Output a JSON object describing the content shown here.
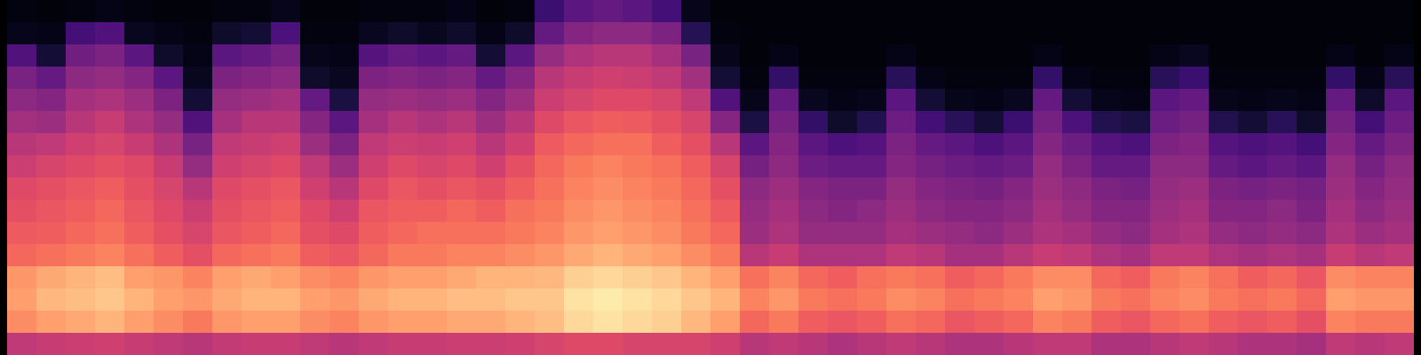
{
  "chart_data": {
    "type": "heatmap",
    "color": "magma",
    "tick_labels": false,
    "zlim": [
      0,
      100
    ],
    "cells": [
      [
        3,
        5,
        25,
        35,
        40,
        45,
        50,
        55,
        60,
        62,
        65,
        68,
        78,
        80,
        76,
        52
      ],
      [
        2,
        4,
        10,
        30,
        38,
        44,
        52,
        58,
        62,
        64,
        66,
        70,
        82,
        85,
        80,
        54
      ],
      [
        3,
        22,
        33,
        40,
        46,
        50,
        56,
        60,
        64,
        66,
        68,
        72,
        84,
        86,
        82,
        55
      ],
      [
        4,
        25,
        36,
        42,
        48,
        54,
        58,
        62,
        66,
        68,
        70,
        74,
        86,
        88,
        84,
        56
      ],
      [
        3,
        6,
        28,
        38,
        44,
        48,
        54,
        60,
        62,
        64,
        66,
        70,
        80,
        84,
        80,
        54
      ],
      [
        2,
        4,
        8,
        28,
        36,
        42,
        48,
        54,
        58,
        60,
        62,
        66,
        78,
        80,
        76,
        52
      ],
      [
        2,
        3,
        4,
        6,
        10,
        25,
        35,
        42,
        50,
        55,
        58,
        62,
        74,
        78,
        72,
        50
      ],
      [
        3,
        8,
        28,
        36,
        42,
        46,
        52,
        56,
        60,
        62,
        64,
        68,
        80,
        82,
        78,
        53
      ],
      [
        3,
        10,
        30,
        38,
        44,
        50,
        54,
        58,
        62,
        64,
        66,
        70,
        82,
        84,
        80,
        54
      ],
      [
        5,
        24,
        34,
        40,
        46,
        50,
        56,
        60,
        64,
        66,
        68,
        72,
        80,
        84,
        80,
        54
      ],
      [
        2,
        3,
        5,
        8,
        30,
        38,
        44,
        52,
        56,
        60,
        62,
        66,
        76,
        80,
        76,
        52
      ],
      [
        2,
        3,
        4,
        6,
        12,
        28,
        36,
        44,
        50,
        56,
        60,
        64,
        74,
        78,
        74,
        50
      ],
      [
        3,
        6,
        26,
        36,
        42,
        46,
        52,
        56,
        60,
        64,
        66,
        68,
        78,
        82,
        78,
        52
      ],
      [
        3,
        8,
        30,
        38,
        44,
        50,
        55,
        60,
        64,
        66,
        68,
        72,
        80,
        84,
        80,
        54
      ],
      [
        3,
        6,
        28,
        36,
        42,
        48,
        54,
        58,
        62,
        66,
        70,
        72,
        80,
        84,
        80,
        54
      ],
      [
        4,
        8,
        30,
        38,
        44,
        50,
        56,
        60,
        64,
        68,
        70,
        74,
        82,
        86,
        82,
        55
      ],
      [
        2,
        4,
        10,
        30,
        38,
        44,
        50,
        56,
        62,
        66,
        70,
        74,
        84,
        86,
        82,
        55
      ],
      [
        3,
        8,
        28,
        38,
        44,
        50,
        56,
        62,
        66,
        70,
        72,
        76,
        84,
        88,
        84,
        56
      ],
      [
        20,
        30,
        42,
        50,
        55,
        60,
        65,
        68,
        70,
        72,
        74,
        78,
        85,
        88,
        86,
        58
      ],
      [
        28,
        38,
        48,
        54,
        58,
        64,
        68,
        72,
        74,
        76,
        78,
        82,
        90,
        94,
        92,
        60
      ],
      [
        30,
        40,
        50,
        56,
        60,
        66,
        70,
        74,
        76,
        78,
        80,
        84,
        92,
        96,
        94,
        60
      ],
      [
        28,
        40,
        50,
        55,
        60,
        65,
        70,
        72,
        74,
        76,
        78,
        82,
        90,
        94,
        92,
        58
      ],
      [
        22,
        36,
        46,
        52,
        58,
        62,
        66,
        70,
        72,
        74,
        76,
        80,
        88,
        92,
        90,
        58
      ],
      [
        5,
        15,
        35,
        45,
        52,
        58,
        62,
        66,
        68,
        70,
        72,
        76,
        84,
        88,
        85,
        58
      ],
      [
        2,
        3,
        5,
        10,
        25,
        38,
        50,
        58,
        62,
        65,
        68,
        72,
        80,
        84,
        80,
        56
      ],
      [
        2,
        2,
        2,
        3,
        5,
        12,
        28,
        34,
        40,
        42,
        44,
        50,
        70,
        74,
        68,
        50
      ],
      [
        2,
        2,
        4,
        18,
        30,
        34,
        38,
        40,
        44,
        46,
        48,
        54,
        74,
        78,
        72,
        52
      ],
      [
        2,
        2,
        2,
        3,
        6,
        18,
        28,
        32,
        38,
        40,
        42,
        48,
        68,
        72,
        66,
        50
      ],
      [
        2,
        2,
        2,
        3,
        4,
        8,
        24,
        30,
        36,
        38,
        42,
        48,
        66,
        70,
        64,
        48
      ],
      [
        2,
        2,
        2,
        3,
        5,
        14,
        26,
        30,
        36,
        40,
        42,
        48,
        70,
        72,
        66,
        50
      ],
      [
        2,
        2,
        4,
        16,
        28,
        32,
        36,
        38,
        42,
        44,
        46,
        52,
        72,
        76,
        70,
        52
      ],
      [
        2,
        2,
        2,
        4,
        10,
        22,
        30,
        34,
        38,
        40,
        44,
        50,
        70,
        74,
        68,
        50
      ],
      [
        2,
        2,
        2,
        3,
        5,
        16,
        28,
        32,
        36,
        38,
        42,
        46,
        66,
        70,
        64,
        48
      ],
      [
        2,
        2,
        2,
        3,
        4,
        10,
        24,
        30,
        34,
        38,
        40,
        46,
        68,
        72,
        66,
        48
      ],
      [
        2,
        2,
        2,
        3,
        6,
        20,
        28,
        32,
        38,
        40,
        44,
        50,
        72,
        74,
        68,
        50
      ],
      [
        2,
        2,
        4,
        18,
        30,
        34,
        38,
        42,
        44,
        46,
        48,
        54,
        76,
        80,
        74,
        52
      ],
      [
        2,
        2,
        2,
        4,
        10,
        24,
        32,
        36,
        40,
        42,
        46,
        52,
        76,
        78,
        72,
        52
      ],
      [
        2,
        2,
        2,
        3,
        5,
        14,
        26,
        30,
        36,
        38,
        42,
        48,
        68,
        72,
        66,
        48
      ],
      [
        2,
        2,
        2,
        3,
        4,
        12,
        24,
        30,
        34,
        38,
        40,
        46,
        66,
        70,
        64,
        48
      ],
      [
        2,
        2,
        4,
        16,
        28,
        32,
        36,
        40,
        42,
        44,
        46,
        52,
        72,
        74,
        68,
        50
      ],
      [
        2,
        2,
        6,
        20,
        30,
        34,
        38,
        40,
        44,
        46,
        48,
        52,
        74,
        76,
        70,
        52
      ],
      [
        2,
        2,
        2,
        3,
        5,
        14,
        26,
        30,
        36,
        38,
        42,
        48,
        70,
        72,
        66,
        50
      ],
      [
        2,
        2,
        2,
        3,
        4,
        10,
        24,
        28,
        34,
        38,
        40,
        46,
        66,
        70,
        64,
        48
      ],
      [
        2,
        2,
        2,
        3,
        5,
        16,
        26,
        30,
        36,
        40,
        42,
        48,
        68,
        72,
        66,
        48
      ],
      [
        2,
        2,
        2,
        3,
        4,
        8,
        22,
        28,
        34,
        36,
        40,
        46,
        64,
        68,
        62,
        46
      ],
      [
        2,
        2,
        4,
        18,
        30,
        34,
        38,
        42,
        44,
        46,
        48,
        54,
        76,
        80,
        74,
        52
      ],
      [
        2,
        2,
        2,
        4,
        8,
        22,
        30,
        34,
        38,
        40,
        44,
        50,
        74,
        78,
        72,
        50
      ],
      [
        2,
        2,
        4,
        16,
        28,
        32,
        36,
        40,
        42,
        44,
        46,
        52,
        74,
        78,
        72,
        52
      ]
    ]
  }
}
